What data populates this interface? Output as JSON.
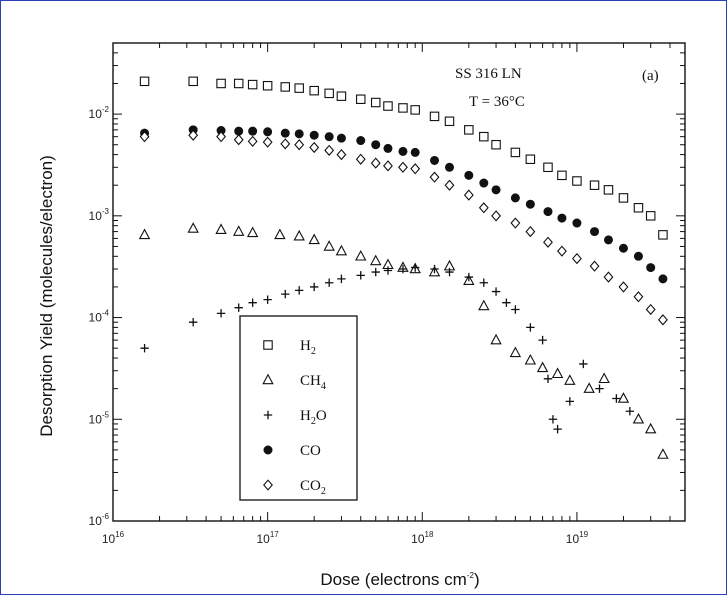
{
  "chart_data": {
    "type": "scatter",
    "x_scale": "log",
    "y_scale": "log",
    "xlim": [
      1e+16,
      5e+19
    ],
    "ylim": [
      1e-06,
      0.05
    ],
    "x_ticks": [
      1e+16,
      1e+17,
      1e+18,
      1e+19
    ],
    "y_ticks": [
      1e-06,
      1e-05,
      0.0001,
      0.001,
      0.01
    ],
    "x_tick_labels": [
      {
        "base": "10",
        "exp": "16"
      },
      {
        "base": "10",
        "exp": "17"
      },
      {
        "base": "10",
        "exp": "18"
      },
      {
        "base": "10",
        "exp": "19"
      }
    ],
    "y_tick_labels": [
      {
        "base": "10",
        "exp": "-6"
      },
      {
        "base": "10",
        "exp": "-5"
      },
      {
        "base": "10",
        "exp": "-4"
      },
      {
        "base": "10",
        "exp": "-3"
      },
      {
        "base": "10",
        "exp": "-2"
      }
    ],
    "xlabel_main": "Dose (electrons cm",
    "xlabel_exp": "-2",
    "xlabel_close": ")",
    "ylabel": "Desorption Yield (molecules/electron)",
    "annotations": {
      "material": "SS 316 LN",
      "temperature": "T = 36°C",
      "panel": "(a)"
    },
    "legend_placement": "lower-left inside plot",
    "series": [
      {
        "name": "H2",
        "label_main": "H",
        "label_sub": "2",
        "marker": "open-square",
        "x": [
          1.6e+16,
          3.3e+16,
          5e+16,
          6.5e+16,
          8e+16,
          1e+17,
          1.3e+17,
          1.6e+17,
          2e+17,
          2.5e+17,
          3e+17,
          4e+17,
          5e+17,
          6e+17,
          7.5e+17,
          9e+17,
          1.2e+18,
          1.5e+18,
          2e+18,
          2.5e+18,
          3e+18,
          4e+18,
          5e+18,
          6.5e+18,
          8e+18,
          1e+19,
          1.3e+19,
          1.6e+19,
          2e+19,
          2.5e+19,
          3e+19,
          3.6e+19
        ],
        "y": [
          0.021,
          0.021,
          0.02,
          0.02,
          0.0195,
          0.019,
          0.0185,
          0.018,
          0.017,
          0.016,
          0.015,
          0.014,
          0.013,
          0.012,
          0.0115,
          0.011,
          0.0095,
          0.0085,
          0.007,
          0.006,
          0.005,
          0.0042,
          0.0036,
          0.003,
          0.0025,
          0.0022,
          0.002,
          0.0018,
          0.0015,
          0.0012,
          0.001,
          0.00065
        ]
      },
      {
        "name": "CH4",
        "label_main": "CH",
        "label_sub": "4",
        "marker": "open-triangle",
        "x": [
          1.6e+16,
          3.3e+16,
          5e+16,
          6.5e+16,
          8e+16,
          1.2e+17,
          1.6e+17,
          2e+17,
          2.5e+17,
          3e+17,
          4e+17,
          5e+17,
          6e+17,
          7.5e+17,
          9e+17,
          1.2e+18,
          1.5e+18,
          2e+18,
          2.5e+18,
          3e+18,
          4e+18,
          5e+18,
          6e+18,
          7.5e+18,
          9e+18,
          1.2e+19,
          1.5e+19,
          2e+19,
          2.5e+19,
          3e+19,
          3.6e+19
        ],
        "y": [
          0.00065,
          0.00075,
          0.00073,
          0.0007,
          0.00068,
          0.00065,
          0.00063,
          0.00058,
          0.0005,
          0.00045,
          0.0004,
          0.00036,
          0.00033,
          0.00031,
          0.0003,
          0.00028,
          0.00032,
          0.00023,
          0.00013,
          6e-05,
          4.5e-05,
          3.8e-05,
          3.2e-05,
          2.8e-05,
          2.4e-05,
          2e-05,
          2.5e-05,
          1.6e-05,
          1e-05,
          8e-06,
          4.5e-06
        ]
      },
      {
        "name": "H2O",
        "label_main": "H",
        "label_sub": "2",
        "label_tail": "O",
        "marker": "plus",
        "x": [
          1.6e+16,
          3.3e+16,
          5e+16,
          6.5e+16,
          8e+16,
          1e+17,
          1.3e+17,
          1.6e+17,
          2e+17,
          2.5e+17,
          3e+17,
          4e+17,
          5e+17,
          6e+17,
          7.5e+17,
          9e+17,
          1.2e+18,
          1.5e+18,
          2e+18,
          2.5e+18,
          3e+18,
          3.5e+18,
          4e+18,
          5e+18,
          6e+18,
          6.5e+18,
          7e+18,
          7.5e+18,
          9e+18,
          1.1e+19,
          1.4e+19,
          1.8e+19,
          2.2e+19
        ],
        "y": [
          5e-05,
          9e-05,
          0.00011,
          0.000125,
          0.00014,
          0.00015,
          0.00017,
          0.000185,
          0.0002,
          0.00022,
          0.00024,
          0.00026,
          0.00028,
          0.00029,
          0.0003,
          0.00031,
          0.0003,
          0.00028,
          0.00025,
          0.00022,
          0.00018,
          0.00014,
          0.00012,
          8e-05,
          6e-05,
          2.5e-05,
          1e-05,
          8e-06,
          1.5e-05,
          3.5e-05,
          2e-05,
          1.6e-05,
          1.2e-05
        ]
      },
      {
        "name": "CO",
        "label_main": "CO",
        "label_sub": "",
        "marker": "filled-circle",
        "x": [
          1.6e+16,
          3.3e+16,
          5e+16,
          6.5e+16,
          8e+16,
          1e+17,
          1.3e+17,
          1.6e+17,
          2e+17,
          2.5e+17,
          3e+17,
          4e+17,
          5e+17,
          6e+17,
          7.5e+17,
          9e+17,
          1.2e+18,
          1.5e+18,
          2e+18,
          2.5e+18,
          3e+18,
          4e+18,
          5e+18,
          6.5e+18,
          8e+18,
          1e+19,
          1.3e+19,
          1.6e+19,
          2e+19,
          2.5e+19,
          3e+19,
          3.6e+19
        ],
        "y": [
          0.0065,
          0.007,
          0.0069,
          0.0068,
          0.0068,
          0.0067,
          0.0065,
          0.0064,
          0.0062,
          0.006,
          0.0058,
          0.0055,
          0.005,
          0.0046,
          0.0043,
          0.0042,
          0.0035,
          0.003,
          0.0025,
          0.0021,
          0.0018,
          0.0015,
          0.0013,
          0.0011,
          0.00095,
          0.00085,
          0.0007,
          0.00058,
          0.00048,
          0.0004,
          0.00031,
          0.00024
        ]
      },
      {
        "name": "CO2",
        "label_main": "CO",
        "label_sub": "2",
        "marker": "open-diamond",
        "x": [
          1.6e+16,
          3.3e+16,
          5e+16,
          6.5e+16,
          8e+16,
          1e+17,
          1.3e+17,
          1.6e+17,
          2e+17,
          2.5e+17,
          3e+17,
          4e+17,
          5e+17,
          6e+17,
          7.5e+17,
          9e+17,
          1.2e+18,
          1.5e+18,
          2e+18,
          2.5e+18,
          3e+18,
          4e+18,
          5e+18,
          6.5e+18,
          8e+18,
          1e+19,
          1.3e+19,
          1.6e+19,
          2e+19,
          2.5e+19,
          3e+19,
          3.6e+19
        ],
        "y": [
          0.006,
          0.0062,
          0.006,
          0.0056,
          0.0054,
          0.0053,
          0.0051,
          0.005,
          0.0047,
          0.0044,
          0.004,
          0.0036,
          0.0033,
          0.0031,
          0.003,
          0.0029,
          0.0024,
          0.002,
          0.0016,
          0.0012,
          0.001,
          0.00085,
          0.0007,
          0.00055,
          0.00045,
          0.00038,
          0.00032,
          0.00025,
          0.0002,
          0.00016,
          0.00012,
          9.5e-05
        ]
      }
    ]
  }
}
